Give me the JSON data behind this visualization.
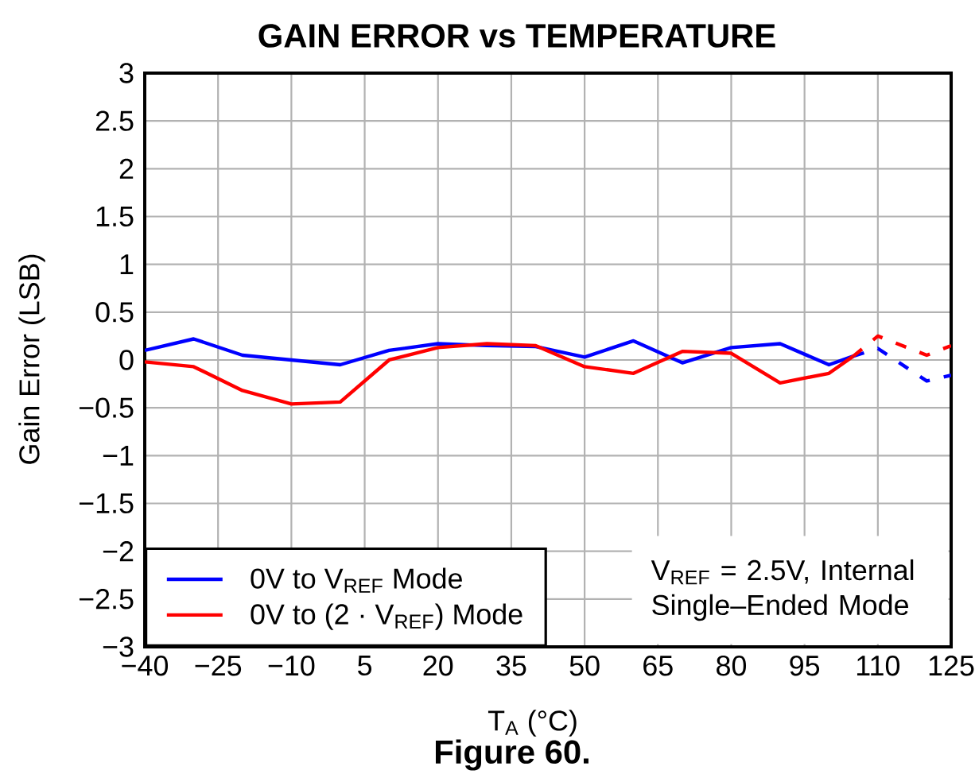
{
  "chart_data": {
    "type": "line",
    "title": "GAIN ERROR vs TEMPERATURE",
    "xlabel": "T$_{A}$ (°C)",
    "ylabel": "Gain Error (LSB)",
    "xlim": [
      -40,
      125
    ],
    "xticks": [
      {
        "value": -40,
        "label": "−40"
      },
      {
        "value": -25,
        "label": "−25"
      },
      {
        "value": -10,
        "label": "−10"
      },
      5,
      20,
      35,
      50,
      65,
      80,
      95,
      110,
      125
    ],
    "ylim": [
      -3,
      3
    ],
    "yticks": [
      {
        "value": -3,
        "label": "−3"
      },
      {
        "value": -2.5,
        "label": "−2.5"
      },
      {
        "value": -2,
        "label": "−2"
      },
      {
        "value": -1.5,
        "label": "−1.5"
      },
      {
        "value": -1,
        "label": "−1"
      },
      {
        "value": -0.5,
        "label": "−0.5"
      },
      0,
      0.5,
      1,
      1.5,
      2,
      2.5,
      3
    ],
    "grid": true,
    "legend": "bottom left",
    "series": [
      {
        "name": "0V to V$_{REF}$ Mode",
        "color": "#0000ff",
        "line_style": "solid",
        "x": [
          -40,
          -30,
          -20,
          -10,
          0,
          10,
          20,
          30,
          40,
          50,
          60,
          70,
          80,
          90,
          100,
          105
        ],
        "values": [
          0.1,
          0.22,
          0.05,
          0.0,
          -0.05,
          0.1,
          0.17,
          0.15,
          0.14,
          0.03,
          0.2,
          -0.03,
          0.13,
          0.17,
          -0.05,
          0.04
        ]
      },
      {
        "name": "0V to (2 · V$_{REF}$) Mode",
        "color": "#ff0000",
        "line_style": "solid",
        "x": [
          -40,
          -30,
          -20,
          -10,
          0,
          10,
          20,
          30,
          40,
          50,
          60,
          70,
          80,
          90,
          100,
          105
        ],
        "values": [
          -0.02,
          -0.07,
          -0.32,
          -0.46,
          -0.44,
          0.0,
          0.13,
          0.17,
          0.15,
          -0.07,
          -0.14,
          0.09,
          0.07,
          -0.24,
          -0.14,
          0.04
        ]
      },
      {
        "color": "#0000ff",
        "line_style": "dashed",
        "x": [
          105,
          110,
          120,
          125
        ],
        "values": [
          0.04,
          0.12,
          -0.22,
          -0.16
        ]
      },
      {
        "color": "#ff0000",
        "line_style": "dashed",
        "x": [
          105,
          110,
          120,
          125
        ],
        "values": [
          0.04,
          0.25,
          0.05,
          0.15
        ]
      }
    ],
    "annotations": [
      "V$_{REF}$ = 2.5V, Internal",
      "Single–Ended Mode",
      "Figure 60."
    ]
  }
}
